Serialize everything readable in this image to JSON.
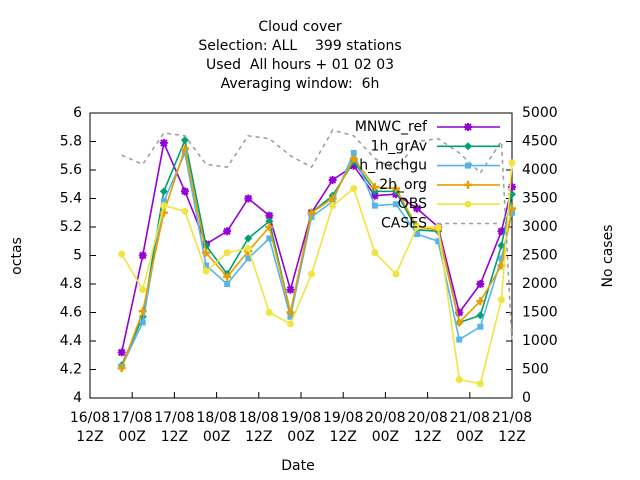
{
  "chart_data": {
    "type": "line",
    "title": [
      "Cloud cover",
      "Selection: ALL    399 stations",
      "Used  All hours + 01 02 03",
      "Averaging window:  6h"
    ],
    "xlabel": "Date",
    "ylabel": "octas",
    "y2label": "No cases",
    "x": [
      9,
      15,
      21,
      27,
      33,
      39,
      45,
      51,
      57,
      63,
      69,
      75,
      81,
      87,
      93,
      99,
      105,
      111,
      117,
      120
    ],
    "xlim": [
      0,
      120
    ],
    "xticks": [
      {
        "value": 0,
        "label": [
          "16/08",
          "12Z"
        ]
      },
      {
        "value": 12,
        "label": [
          "17/08",
          "00Z"
        ]
      },
      {
        "value": 24,
        "label": [
          "17/08",
          "12Z"
        ]
      },
      {
        "value": 36,
        "label": [
          "18/08",
          "00Z"
        ]
      },
      {
        "value": 48,
        "label": [
          "18/08",
          "12Z"
        ]
      },
      {
        "value": 60,
        "label": [
          "19/08",
          "00Z"
        ]
      },
      {
        "value": 72,
        "label": [
          "19/08",
          "12Z"
        ]
      },
      {
        "value": 84,
        "label": [
          "20/08",
          "00Z"
        ]
      },
      {
        "value": 96,
        "label": [
          "20/08",
          "12Z"
        ]
      },
      {
        "value": 108,
        "label": [
          "21/08",
          "00Z"
        ]
      },
      {
        "value": 120,
        "label": [
          "21/08",
          "12Z"
        ]
      }
    ],
    "ylim": [
      4,
      6
    ],
    "yticks": [
      4,
      4.2,
      4.4,
      4.6,
      4.8,
      5,
      5.2,
      5.4,
      5.6,
      5.8,
      6
    ],
    "y2lim": [
      0,
      5000
    ],
    "y2ticks": [
      0,
      500,
      1000,
      1500,
      2000,
      2500,
      3000,
      3500,
      4000,
      4500,
      5000
    ],
    "legend": "top-right",
    "series": [
      {
        "name": "MNWC_ref",
        "color": "#9400d3",
        "marker": "star",
        "values": [
          4.32,
          5.0,
          5.79,
          5.45,
          5.08,
          5.17,
          5.4,
          5.28,
          4.76,
          5.3,
          5.53,
          5.63,
          5.42,
          5.43,
          5.33,
          5.2,
          4.6,
          4.8,
          5.17,
          5.48
        ]
      },
      {
        "name": "1h_grAv",
        "color": "#009e73",
        "marker": "diamond",
        "values": [
          4.23,
          4.57,
          5.45,
          5.81,
          5.07,
          4.87,
          5.12,
          5.24,
          4.6,
          5.3,
          5.42,
          5.66,
          5.45,
          5.45,
          5.18,
          5.17,
          4.53,
          4.58,
          5.07,
          5.43
        ]
      },
      {
        "name": "h_nechgu",
        "color": "#56b4e9",
        "marker": "square",
        "values": [
          4.22,
          4.53,
          5.38,
          5.72,
          4.93,
          4.8,
          4.98,
          5.12,
          4.57,
          5.27,
          5.38,
          5.72,
          5.35,
          5.36,
          5.15,
          5.1,
          4.41,
          4.5,
          4.98,
          5.3
        ]
      },
      {
        "name": "2h_org",
        "color": "#e69f00",
        "marker": "plus",
        "values": [
          4.21,
          4.61,
          5.3,
          5.75,
          5.02,
          4.85,
          5.03,
          5.2,
          4.6,
          5.3,
          5.4,
          5.68,
          5.48,
          5.47,
          5.2,
          5.18,
          4.53,
          4.68,
          4.93,
          5.33
        ]
      },
      {
        "name": "OBS",
        "color": "#f0e442",
        "marker": "circle",
        "values": [
          5.01,
          4.76,
          5.35,
          5.31,
          4.89,
          5.02,
          5.05,
          4.6,
          4.52,
          4.87,
          5.35,
          5.47,
          5.02,
          4.87,
          5.2,
          5.2,
          4.13,
          4.1,
          4.69,
          5.65
        ]
      },
      {
        "name": "CASES",
        "color": "#a0a0a0",
        "marker": "none",
        "dash": true,
        "axis": "y2",
        "values": [
          4260,
          4100,
          4650,
          4600,
          4100,
          4050,
          4600,
          4550,
          4250,
          4050,
          4700,
          4600,
          4200,
          4000,
          4500,
          4550,
          4300,
          3950,
          4500,
          970
        ]
      }
    ]
  }
}
